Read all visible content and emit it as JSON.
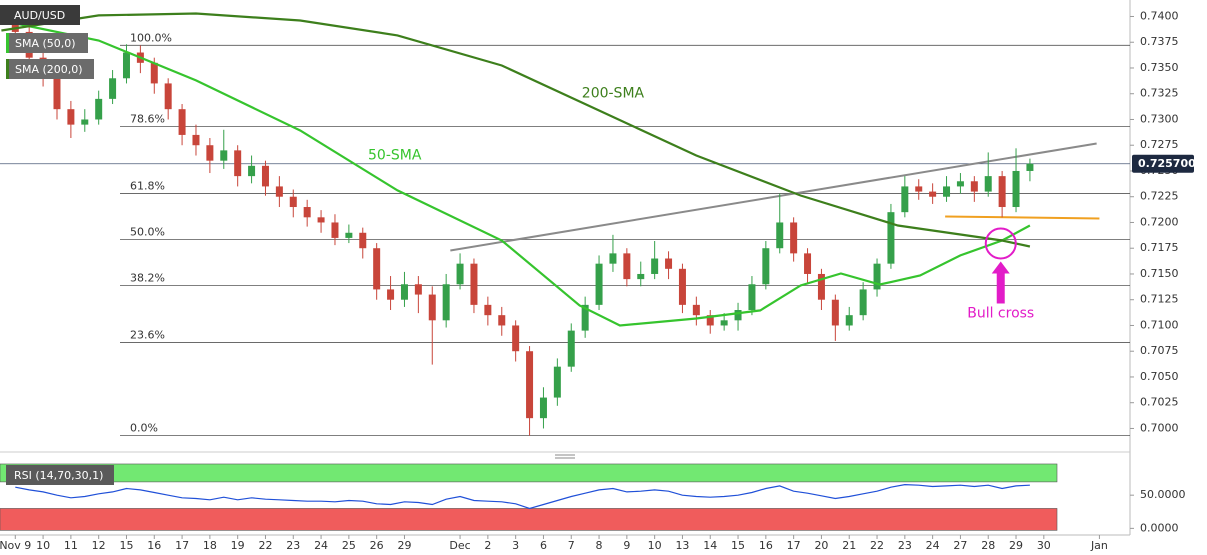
{
  "chart_data": [
    {
      "type": "candlestick",
      "title": "AUD/USD",
      "open": [
        0.7395,
        0.7385,
        0.736,
        0.734,
        0.731,
        0.7295,
        0.73,
        0.732,
        0.734,
        0.7365,
        0.7355,
        0.7335,
        0.731,
        0.7285,
        0.7275,
        0.726,
        0.727,
        0.7245,
        0.7255,
        0.7235,
        0.7225,
        0.7215,
        0.7205,
        0.72,
        0.7185,
        0.719,
        0.7175,
        0.7135,
        0.7125,
        0.714,
        0.713,
        0.7105,
        0.714,
        0.716,
        0.712,
        0.711,
        0.71,
        0.7075,
        0.701,
        0.703,
        0.706,
        0.7095,
        0.712,
        0.716,
        0.717,
        0.7145,
        0.715,
        0.7165,
        0.7155,
        0.712,
        0.711,
        0.71,
        0.7105,
        0.7115,
        0.714,
        0.7175,
        0.72,
        0.717,
        0.715,
        0.7125,
        0.71,
        0.711,
        0.7135,
        0.716,
        0.721,
        0.7235,
        0.723,
        0.7225,
        0.7235,
        0.724,
        0.723,
        0.7245,
        0.7215,
        0.725
      ],
      "high": [
        0.7405,
        0.739,
        0.7368,
        0.7345,
        0.7318,
        0.731,
        0.7328,
        0.7348,
        0.7373,
        0.7372,
        0.736,
        0.734,
        0.7315,
        0.7295,
        0.7282,
        0.729,
        0.7275,
        0.7265,
        0.726,
        0.7245,
        0.7232,
        0.7222,
        0.7212,
        0.7208,
        0.7198,
        0.7195,
        0.718,
        0.7148,
        0.7152,
        0.7148,
        0.7138,
        0.715,
        0.717,
        0.7165,
        0.7128,
        0.7118,
        0.7105,
        0.708,
        0.704,
        0.7068,
        0.7102,
        0.7128,
        0.7168,
        0.7188,
        0.7175,
        0.7162,
        0.7182,
        0.7172,
        0.716,
        0.7128,
        0.7115,
        0.7112,
        0.7122,
        0.7148,
        0.7182,
        0.7228,
        0.7205,
        0.7175,
        0.7155,
        0.713,
        0.7118,
        0.7142,
        0.7165,
        0.7218,
        0.7245,
        0.7242,
        0.7238,
        0.7245,
        0.7248,
        0.7245,
        0.7268,
        0.725,
        0.7272,
        0.7262
      ],
      "low": [
        0.7378,
        0.7352,
        0.7332,
        0.73,
        0.7282,
        0.7288,
        0.7295,
        0.7315,
        0.7335,
        0.7345,
        0.7325,
        0.73,
        0.7275,
        0.7265,
        0.7248,
        0.7252,
        0.7235,
        0.7238,
        0.7226,
        0.7215,
        0.7205,
        0.7196,
        0.719,
        0.7178,
        0.718,
        0.7165,
        0.7125,
        0.7115,
        0.7118,
        0.7112,
        0.7062,
        0.7098,
        0.7135,
        0.7112,
        0.71,
        0.709,
        0.7065,
        0.6993,
        0.7,
        0.7022,
        0.7055,
        0.7088,
        0.7115,
        0.7152,
        0.7138,
        0.7138,
        0.7145,
        0.7145,
        0.7112,
        0.71,
        0.7092,
        0.7095,
        0.7095,
        0.711,
        0.7135,
        0.717,
        0.7162,
        0.714,
        0.7115,
        0.7085,
        0.7095,
        0.7105,
        0.7128,
        0.7155,
        0.7205,
        0.7222,
        0.7218,
        0.722,
        0.7228,
        0.722,
        0.7225,
        0.7205,
        0.721,
        0.724
      ],
      "close": [
        0.7385,
        0.736,
        0.734,
        0.731,
        0.7295,
        0.73,
        0.732,
        0.734,
        0.7365,
        0.7355,
        0.7335,
        0.731,
        0.7285,
        0.7275,
        0.726,
        0.727,
        0.7245,
        0.7255,
        0.7235,
        0.7225,
        0.7215,
        0.7205,
        0.72,
        0.7185,
        0.719,
        0.7175,
        0.7135,
        0.7125,
        0.714,
        0.713,
        0.7105,
        0.714,
        0.716,
        0.712,
        0.711,
        0.71,
        0.7075,
        0.701,
        0.703,
        0.706,
        0.7095,
        0.712,
        0.716,
        0.717,
        0.7145,
        0.715,
        0.7165,
        0.7155,
        0.712,
        0.711,
        0.71,
        0.7105,
        0.7115,
        0.714,
        0.7175,
        0.72,
        0.717,
        0.715,
        0.7125,
        0.71,
        0.711,
        0.7135,
        0.716,
        0.721,
        0.7235,
        0.723,
        0.7225,
        0.7235,
        0.724,
        0.723,
        0.7245,
        0.7215,
        0.725,
        0.7257
      ],
      "up_color": "#35a04a",
      "down_color": "#c8453a",
      "xlim": [
        -1.1,
        80.2
      ],
      "xticks": [
        {
          "value": 0,
          "label": "Nov 9"
        },
        {
          "value": 2,
          "label": "10"
        },
        {
          "value": 4,
          "label": "11"
        },
        {
          "value": 6,
          "label": "12"
        },
        {
          "value": 8,
          "label": "15"
        },
        {
          "value": 10,
          "label": "16"
        },
        {
          "value": 12,
          "label": "17"
        },
        {
          "value": 14,
          "label": "18"
        },
        {
          "value": 16,
          "label": "19"
        },
        {
          "value": 18,
          "label": "22"
        },
        {
          "value": 20,
          "label": "23"
        },
        {
          "value": 22,
          "label": "24"
        },
        {
          "value": 24,
          "label": "25"
        },
        {
          "value": 26,
          "label": "26"
        },
        {
          "value": 28,
          "label": "29"
        },
        {
          "value": 32,
          "label": "Dec"
        },
        {
          "value": 34,
          "label": "2"
        },
        {
          "value": 36,
          "label": "3"
        },
        {
          "value": 38,
          "label": "6"
        },
        {
          "value": 40,
          "label": "7"
        },
        {
          "value": 42,
          "label": "8"
        },
        {
          "value": 44,
          "label": "9"
        },
        {
          "value": 46,
          "label": "10"
        },
        {
          "value": 48,
          "label": "13"
        },
        {
          "value": 50,
          "label": "14"
        },
        {
          "value": 52,
          "label": "15"
        },
        {
          "value": 54,
          "label": "16"
        },
        {
          "value": 56,
          "label": "17"
        },
        {
          "value": 58,
          "label": "20"
        },
        {
          "value": 60,
          "label": "21"
        },
        {
          "value": 62,
          "label": "22"
        },
        {
          "value": 64,
          "label": "23"
        },
        {
          "value": 66,
          "label": "24"
        },
        {
          "value": 68,
          "label": "27"
        },
        {
          "value": 70,
          "label": "28"
        },
        {
          "value": 72,
          "label": "29"
        },
        {
          "value": 74,
          "label": "30"
        },
        {
          "value": 78,
          "label": "Jan"
        }
      ],
      "ylim": [
        0.6982,
        0.7416
      ],
      "yticks": [
        {
          "value": 0.7,
          "label": "0.7000"
        },
        {
          "value": 0.7025,
          "label": "0.7025"
        },
        {
          "value": 0.705,
          "label": "0.7050"
        },
        {
          "value": 0.7075,
          "label": "0.7075"
        },
        {
          "value": 0.71,
          "label": "0.7100"
        },
        {
          "value": 0.7125,
          "label": "0.7125"
        },
        {
          "value": 0.715,
          "label": "0.7150"
        },
        {
          "value": 0.7175,
          "label": "0.7175"
        },
        {
          "value": 0.72,
          "label": "0.7200"
        },
        {
          "value": 0.7225,
          "label": "0.7225"
        },
        {
          "value": 0.725,
          "label": "0.7250"
        },
        {
          "value": 0.7275,
          "label": "0.7275"
        },
        {
          "value": 0.73,
          "label": "0.7300"
        },
        {
          "value": 0.7325,
          "label": "0.7325"
        },
        {
          "value": 0.735,
          "label": "0.7350"
        },
        {
          "value": 0.7375,
          "label": "0.7375"
        },
        {
          "value": 0.74,
          "label": "0.7400"
        }
      ],
      "overlays": [
        {
          "name": "SMA (50,0)",
          "label": "50-SMA",
          "color": "#36c42e",
          "label_x": 27.3,
          "label_value": 0.7265,
          "x": [
            -1,
            6,
            13,
            20.5,
            27.5,
            35,
            40.6,
            43.5,
            49,
            53.6,
            56.5,
            59.4,
            62.2,
            65.1,
            68,
            71,
            73
          ],
          "values": [
            0.73961,
            0.73767,
            0.73379,
            0.72893,
            0.72311,
            0.71825,
            0.71194,
            0.71,
            0.71068,
            0.71146,
            0.71388,
            0.71505,
            0.71398,
            0.71485,
            0.7168,
            0.71825,
            0.71971
          ]
        },
        {
          "name": "SMA (200,0)",
          "label": "200-SMA",
          "color": "#3d7f1c",
          "label_x": 43,
          "label_value": 0.73252,
          "x": [
            -1,
            6,
            13,
            20.5,
            27.5,
            35,
            42,
            49,
            56.5,
            63.5,
            71,
            73
          ],
          "values": [
            0.73864,
            0.7401,
            0.74029,
            0.73961,
            0.73816,
            0.73524,
            0.73087,
            0.7265,
            0.72262,
            0.71971,
            0.71825,
            0.71767
          ]
        }
      ],
      "fib_levels": [
        {
          "label": "100.0%",
          "value": 0.7372
        },
        {
          "label": "78.6%",
          "value": 0.72932
        },
        {
          "label": "61.8%",
          "value": 0.72282
        },
        {
          "label": "50.0%",
          "value": 0.71835
        },
        {
          "label": "38.2%",
          "value": 0.71388
        },
        {
          "label": "23.6%",
          "value": 0.70835
        },
        {
          "label": "0.0%",
          "value": 0.69932
        }
      ],
      "trendlines": [
        {
          "color": "#8a8a8a",
          "x": [
            31.3,
            77.8
          ],
          "values": [
            0.71728,
            0.72767
          ]
        },
        {
          "color": "#f0a020",
          "x": [
            66.9,
            78
          ],
          "values": [
            0.72058,
            0.72039
          ]
        }
      ],
      "last_price": {
        "value": 0.7257,
        "label": "0.725700"
      },
      "annotation": {
        "text": "Bull cross",
        "x": 70.9,
        "value": 0.71796,
        "color": "#e21cc8"
      }
    },
    {
      "type": "line",
      "title": "RSI (14,70,30,1)",
      "color": "#2050d8",
      "values": [
        62,
        58,
        55,
        50,
        46,
        48,
        52,
        55,
        60,
        58,
        54,
        50,
        46,
        45,
        43,
        47,
        43,
        46,
        44,
        43,
        42,
        41,
        41,
        40,
        42,
        41,
        37,
        36,
        40,
        39,
        36,
        44,
        48,
        42,
        41,
        40,
        37,
        30,
        36,
        42,
        48,
        53,
        58,
        60,
        55,
        56,
        58,
        56,
        50,
        48,
        47,
        48,
        50,
        54,
        60,
        64,
        56,
        53,
        49,
        45,
        48,
        52,
        56,
        62,
        66,
        65,
        63,
        64,
        65,
        63,
        65,
        60,
        64,
        65
      ],
      "ylim": [
        -10,
        103
      ],
      "yticks": [
        {
          "value": 0,
          "label": "0.0000"
        },
        {
          "value": 50,
          "label": "50.0000"
        }
      ],
      "bands": [
        {
          "from": 70,
          "to": 97,
          "color": "#72e872"
        },
        {
          "from": -3,
          "to": 30,
          "color": "#f05c5c"
        }
      ]
    }
  ]
}
